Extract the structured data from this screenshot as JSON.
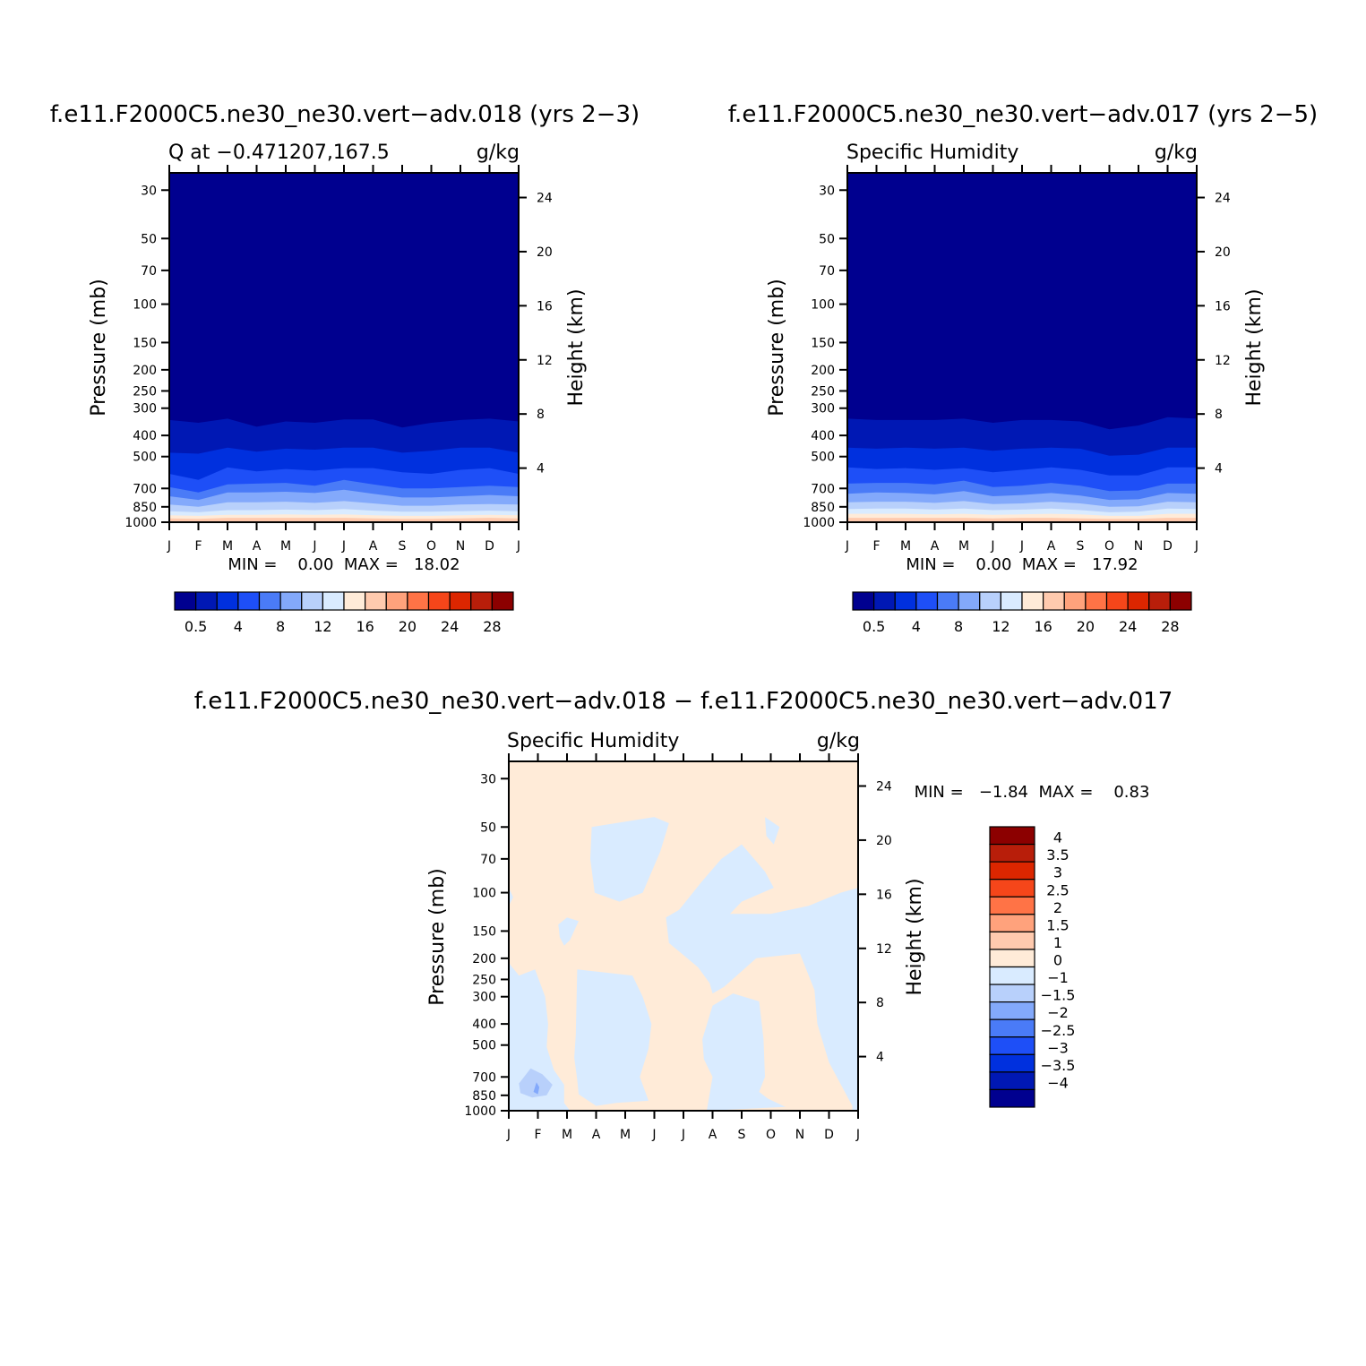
{
  "panels": [
    {
      "id": "case018",
      "title": "f.e11.F2000C5.ne30_ne30.vert−adv.018 (yrs 2−3)",
      "left_label": "Q at −0.471207,167.5",
      "units": "g/kg",
      "ylabel": "Pressure (mb)",
      "y2label": "Height (km)",
      "stats": "MIN =    0.00  MAX =   18.02",
      "chart_data": {
        "type": "heatmap",
        "x_categories": [
          "J",
          "F",
          "M",
          "A",
          "M",
          "J",
          "J",
          "A",
          "S",
          "O",
          "N",
          "D",
          "J"
        ],
        "y_pressure_ticks": [
          30,
          50,
          70,
          100,
          150,
          200,
          250,
          300,
          400,
          500,
          700,
          850,
          1000
        ],
        "y_height_ticks_km": [
          24,
          20,
          16,
          12,
          8,
          4
        ],
        "y_scale": "log",
        "ylim_mb": [
          1000,
          25
        ],
        "min": 0.0,
        "max": 18.02,
        "contour_levels": [
          0.5,
          2,
          4,
          6,
          8,
          10,
          12,
          14,
          16,
          18,
          20,
          22,
          24,
          26,
          28
        ],
        "colorbar_labels": [
          "0.5",
          "4",
          "8",
          "12",
          "16",
          "20",
          "24",
          "28"
        ],
        "level_boundaries_mb": [
          [
            340,
            350,
            335,
            365,
            345,
            350,
            338,
            338,
            368,
            350,
            340,
            335,
            345
          ],
          [
            480,
            485,
            455,
            475,
            460,
            465,
            455,
            455,
            480,
            470,
            455,
            455,
            480
          ],
          [
            600,
            640,
            560,
            585,
            570,
            580,
            565,
            565,
            590,
            600,
            575,
            565,
            600
          ],
          [
            690,
            730,
            670,
            665,
            660,
            680,
            640,
            670,
            700,
            700,
            690,
            680,
            690
          ],
          [
            760,
            790,
            730,
            730,
            725,
            735,
            710,
            740,
            770,
            770,
            760,
            750,
            760
          ],
          [
            830,
            850,
            810,
            810,
            805,
            815,
            800,
            820,
            840,
            840,
            830,
            825,
            830
          ],
          [
            890,
            900,
            880,
            880,
            875,
            880,
            870,
            885,
            895,
            895,
            890,
            885,
            890
          ],
          [
            930,
            935,
            925,
            925,
            920,
            925,
            920,
            930,
            935,
            935,
            930,
            925,
            930
          ],
          [
            960,
            965,
            955,
            955,
            955,
            955,
            955,
            960,
            965,
            965,
            960,
            955,
            960
          ]
        ]
      }
    },
    {
      "id": "case017",
      "title": "f.e11.F2000C5.ne30_ne30.vert−adv.017 (yrs 2−5)",
      "left_label": "Specific Humidity",
      "units": "g/kg",
      "ylabel": "Pressure (mb)",
      "y2label": "Height (km)",
      "stats": "MIN =    0.00  MAX =   17.92",
      "chart_data": {
        "type": "heatmap",
        "x_categories": [
          "J",
          "F",
          "M",
          "A",
          "M",
          "J",
          "J",
          "A",
          "S",
          "O",
          "N",
          "D",
          "J"
        ],
        "y_pressure_ticks": [
          30,
          50,
          70,
          100,
          150,
          200,
          250,
          300,
          400,
          500,
          700,
          850,
          1000
        ],
        "y_height_ticks_km": [
          24,
          20,
          16,
          12,
          8,
          4
        ],
        "y_scale": "log",
        "ylim_mb": [
          1000,
          25
        ],
        "min": 0.0,
        "max": 17.92,
        "contour_levels": [
          0.5,
          2,
          4,
          6,
          8,
          10,
          12,
          14,
          16,
          18,
          20,
          22,
          24,
          26,
          28
        ],
        "colorbar_labels": [
          "0.5",
          "4",
          "8",
          "12",
          "16",
          "20",
          "24",
          "28"
        ],
        "level_boundaries_mb": [
          [
            335,
            340,
            340,
            340,
            335,
            350,
            340,
            340,
            345,
            375,
            360,
            330,
            335
          ],
          [
            455,
            460,
            455,
            460,
            455,
            470,
            460,
            455,
            460,
            495,
            490,
            455,
            455
          ],
          [
            560,
            570,
            565,
            575,
            565,
            590,
            575,
            560,
            575,
            610,
            610,
            560,
            560
          ],
          [
            665,
            660,
            660,
            670,
            645,
            690,
            680,
            660,
            680,
            720,
            715,
            665,
            665
          ],
          [
            740,
            730,
            735,
            745,
            720,
            760,
            750,
            735,
            755,
            790,
            785,
            735,
            740
          ],
          [
            810,
            805,
            805,
            815,
            800,
            825,
            820,
            805,
            820,
            850,
            845,
            805,
            810
          ],
          [
            870,
            865,
            865,
            875,
            865,
            880,
            875,
            865,
            880,
            900,
            895,
            865,
            870
          ],
          [
            915,
            915,
            915,
            920,
            915,
            925,
            920,
            915,
            920,
            935,
            935,
            915,
            915
          ],
          [
            955,
            955,
            955,
            955,
            955,
            960,
            955,
            955,
            960,
            965,
            965,
            955,
            955
          ]
        ]
      }
    },
    {
      "id": "difference",
      "title": "f.e11.F2000C5.ne30_ne30.vert−adv.018 − f.e11.F2000C5.ne30_ne30.vert−adv.017",
      "left_label": "Specific Humidity",
      "units": "g/kg",
      "ylabel": "Pressure (mb)",
      "y2label": "Height (km)",
      "stats": "MIN =   −1.84  MAX =    0.83",
      "chart_data": {
        "type": "heatmap",
        "x_categories": [
          "J",
          "F",
          "M",
          "A",
          "M",
          "J",
          "J",
          "A",
          "S",
          "O",
          "N",
          "D",
          "J"
        ],
        "y_pressure_ticks": [
          30,
          50,
          70,
          100,
          150,
          200,
          250,
          300,
          400,
          500,
          700,
          850,
          1000
        ],
        "y_height_ticks_km": [
          24,
          20,
          16,
          12,
          8,
          4
        ],
        "y_scale": "log",
        "ylim_mb": [
          1000,
          25
        ],
        "min": -1.84,
        "max": 0.83,
        "contour_levels": [
          -4,
          -3.5,
          -3,
          -2.5,
          -2,
          -1.5,
          -1,
          0,
          1,
          1.5,
          2,
          2.5,
          3,
          3.5,
          4
        ],
        "colorbar_labels": [
          "4",
          "3.5",
          "3",
          "2.5",
          "2",
          "1.5",
          "1",
          "0",
          "−1",
          "−1.5",
          "−2",
          "−2.5",
          "−3",
          "−3.5",
          "−4"
        ],
        "background_range": "0 to 1",
        "regions": [
          {
            "range": "-1 to 0",
            "outline": [
              [
                2.85,
                50
              ],
              [
                5.0,
                45
              ],
              [
                5.5,
                48
              ],
              [
                5.2,
                65
              ],
              [
                4.6,
                100
              ],
              [
                3.8,
                110
              ],
              [
                2.95,
                100
              ],
              [
                2.8,
                70
              ]
            ]
          },
          {
            "range": "-1 to 0",
            "outline": [
              [
                8.8,
                45
              ],
              [
                9.3,
                50
              ],
              [
                9.1,
                60
              ],
              [
                8.85,
                55
              ]
            ]
          },
          {
            "range": "-1 to 0",
            "outline": [
              [
                8.0,
                60
              ],
              [
                8.8,
                80
              ],
              [
                9.1,
                95
              ],
              [
                8.0,
                110
              ],
              [
                7.6,
                125
              ],
              [
                9.0,
                125
              ],
              [
                10.3,
                115
              ],
              [
                11.4,
                100
              ],
              [
                12.0,
                95
              ],
              [
                12.0,
                1000
              ],
              [
                11.8,
                1000
              ],
              [
                11.8,
                950
              ],
              [
                11.0,
                600
              ],
              [
                10.6,
                400
              ],
              [
                10.5,
                280
              ],
              [
                10.0,
                190
              ],
              [
                8.5,
                200
              ],
              [
                7.4,
                270
              ],
              [
                7.0,
                290
              ],
              [
                6.9,
                260
              ],
              [
                6.5,
                220
              ],
              [
                5.5,
                170
              ],
              [
                5.4,
                130
              ],
              [
                5.85,
                120
              ],
              [
                6.6,
                90
              ],
              [
                7.3,
                70
              ]
            ]
          },
          {
            "range": "-1 to 0",
            "outline": [
              [
                7.0,
                330
              ],
              [
                7.7,
                290
              ],
              [
                8.6,
                315
              ],
              [
                8.75,
                470
              ],
              [
                8.8,
                700
              ],
              [
                8.6,
                820
              ],
              [
                8.9,
                880
              ],
              [
                9.5,
                960
              ],
              [
                6.8,
                1000
              ],
              [
                7.0,
                700
              ],
              [
                6.7,
                580
              ],
              [
                6.65,
                470
              ]
            ]
          },
          {
            "range": "-1 to 0",
            "outline": [
              [
                2.3,
                450
              ],
              [
                2.25,
                570
              ],
              [
                2.35,
                720
              ],
              [
                2.4,
                840
              ],
              [
                3.0,
                950
              ],
              [
                3.7,
                920
              ],
              [
                4.8,
                900
              ],
              [
                4.5,
                700
              ],
              [
                4.8,
                520
              ],
              [
                4.9,
                400
              ],
              [
                4.6,
                300
              ],
              [
                4.25,
                240
              ],
              [
                2.35,
                225
              ]
            ]
          },
          {
            "range": "-1 to 0",
            "outline": [
              [
                0.0,
                210
              ],
              [
                0.35,
                240
              ],
              [
                0.9,
                225
              ],
              [
                1.25,
                300
              ],
              [
                1.35,
                400
              ],
              [
                1.3,
                510
              ],
              [
                1.55,
                650
              ],
              [
                1.9,
                760
              ],
              [
                1.9,
                920
              ],
              [
                2.1,
                1000
              ],
              [
                0.0,
                1000
              ]
            ]
          },
          {
            "range": "-1 to 0",
            "outline": [
              [
                1.7,
                140
              ],
              [
                2.0,
                130
              ],
              [
                2.4,
                135
              ],
              [
                2.1,
                165
              ],
              [
                1.9,
                175
              ],
              [
                1.75,
                160
              ]
            ]
          },
          {
            "range": "-1 to 0",
            "outline": [
              [
                0.0,
                95
              ],
              [
                0.15,
                105
              ],
              [
                0.0,
                115
              ]
            ]
          },
          {
            "range": "-1 to 0",
            "outline": [
              [
                11.65,
                165
              ],
              [
                12.0,
                165
              ],
              [
                12.0,
                240
              ],
              [
                11.7,
                215
              ],
              [
                11.6,
                195
              ]
            ]
          },
          {
            "range": "-1.5 to -1",
            "outline": [
              [
                0.35,
                750
              ],
              [
                0.75,
                640
              ],
              [
                1.15,
                680
              ],
              [
                1.5,
                760
              ],
              [
                1.3,
                850
              ],
              [
                0.8,
                870
              ],
              [
                0.4,
                830
              ]
            ]
          },
          {
            "range": "-2 to -1.5",
            "outline": [
              [
                0.85,
                820
              ],
              [
                0.95,
                740
              ],
              [
                1.05,
                780
              ],
              [
                1.0,
                840
              ]
            ]
          }
        ]
      }
    }
  ],
  "colors": {
    "seq_colorbar": [
      "#00008f",
      "#0018b4",
      "#0030de",
      "#1e4ff7",
      "#4a7bf7",
      "#83a9fb",
      "#b8d0fb",
      "#d9ebff",
      "#ffebd8",
      "#ffcaae",
      "#ffa27c",
      "#ff7346",
      "#f5461a",
      "#dc2600",
      "#b81e0a",
      "#8c0000"
    ],
    "diff_colorbar": [
      "#8c0000",
      "#b81e0a",
      "#dc2600",
      "#f5461a",
      "#ff7346",
      "#ffa27c",
      "#ffcaae",
      "#ffebd8",
      "#d9ebff",
      "#b8d0fb",
      "#83a9fb",
      "#4a7bf7",
      "#1e4ff7",
      "#0030de",
      "#0018b4",
      "#00008f"
    ],
    "diff_fills": {
      "0 to 1": "#ffebd8",
      "-1 to 0": "#d9ebff",
      "-1.5 to -1": "#b8d0fb",
      "-2 to -1.5": "#83a9fb"
    }
  }
}
